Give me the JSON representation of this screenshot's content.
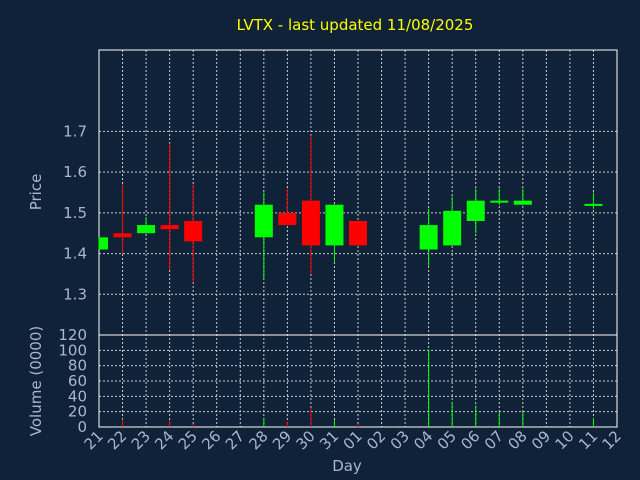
{
  "chart_data": {
    "type": "candlestick",
    "title": "LVTX - last updated 11/08/2025",
    "xlabel": "Day",
    "colors": {
      "background": "#0f2237",
      "up": "#00ff00",
      "down": "#ff0000",
      "title": "#ffff00",
      "axis_text": "#a9b7cc",
      "grid": "#c8ccd2"
    },
    "x_ticks": [
      "21",
      "22",
      "23",
      "24",
      "25",
      "26",
      "27",
      "28",
      "29",
      "30",
      "31",
      "01",
      "02",
      "03",
      "04",
      "05",
      "06",
      "07",
      "08",
      "09",
      "10",
      "11",
      "12"
    ],
    "price_panel": {
      "ylabel": "Price",
      "ylim": [
        1.2,
        1.9
      ],
      "yticks": [
        "1.3",
        "1.4",
        "1.5",
        "1.6",
        "1.7"
      ],
      "candles": [
        {
          "day": "21",
          "open": 1.41,
          "high": 1.44,
          "low": 1.41,
          "close": 1.44
        },
        {
          "day": "22",
          "open": 1.45,
          "high": 1.57,
          "low": 1.4,
          "close": 1.44
        },
        {
          "day": "23",
          "open": 1.45,
          "high": 1.49,
          "low": 1.45,
          "close": 1.47
        },
        {
          "day": "24",
          "open": 1.47,
          "high": 1.67,
          "low": 1.36,
          "close": 1.46
        },
        {
          "day": "25",
          "open": 1.48,
          "high": 1.57,
          "low": 1.33,
          "close": 1.43
        },
        {
          "day": "28",
          "open": 1.44,
          "high": 1.55,
          "low": 1.34,
          "close": 1.52
        },
        {
          "day": "29",
          "open": 1.5,
          "high": 1.56,
          "low": 1.47,
          "close": 1.47
        },
        {
          "day": "30",
          "open": 1.53,
          "high": 1.69,
          "low": 1.35,
          "close": 1.42
        },
        {
          "day": "31",
          "open": 1.42,
          "high": 1.52,
          "low": 1.38,
          "close": 1.52
        },
        {
          "day": "01",
          "open": 1.48,
          "high": 1.48,
          "low": 1.42,
          "close": 1.42
        },
        {
          "day": "04",
          "open": 1.41,
          "high": 1.51,
          "low": 1.37,
          "close": 1.47
        },
        {
          "day": "05",
          "open": 1.42,
          "high": 1.54,
          "low": 1.42,
          "close": 1.505
        },
        {
          "day": "06",
          "open": 1.48,
          "high": 1.56,
          "low": 1.45,
          "close": 1.53
        },
        {
          "day": "07",
          "open": 1.527,
          "high": 1.56,
          "low": 1.52,
          "close": 1.53
        },
        {
          "day": "08",
          "open": 1.52,
          "high": 1.56,
          "low": 1.52,
          "close": 1.53
        },
        {
          "day": "11",
          "open": 1.518,
          "high": 1.55,
          "low": 1.51,
          "close": 1.522
        }
      ]
    },
    "volume_panel": {
      "ylabel": "Volume (0000)",
      "ylim": [
        0,
        120
      ],
      "yticks": [
        "0",
        "20",
        "40",
        "60",
        "80",
        "100",
        "120"
      ],
      "bars": [
        {
          "day": "22",
          "value": 10,
          "dir": "down"
        },
        {
          "day": "24",
          "value": 9,
          "dir": "down"
        },
        {
          "day": "25",
          "value": 4,
          "dir": "down"
        },
        {
          "day": "28",
          "value": 12,
          "dir": "up"
        },
        {
          "day": "29",
          "value": 7,
          "dir": "down"
        },
        {
          "day": "30",
          "value": 25,
          "dir": "down"
        },
        {
          "day": "31",
          "value": 9,
          "dir": "up"
        },
        {
          "day": "01",
          "value": 4,
          "dir": "down"
        },
        {
          "day": "04",
          "value": 101,
          "dir": "up"
        },
        {
          "day": "05",
          "value": 32,
          "dir": "up"
        },
        {
          "day": "06",
          "value": 28,
          "dir": "up"
        },
        {
          "day": "07",
          "value": 20,
          "dir": "up"
        },
        {
          "day": "08",
          "value": 20,
          "dir": "up"
        },
        {
          "day": "11",
          "value": 12,
          "dir": "up"
        }
      ]
    }
  }
}
